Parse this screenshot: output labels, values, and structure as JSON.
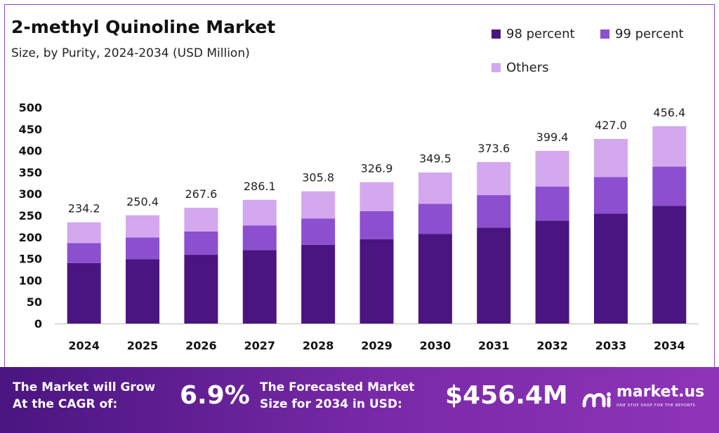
{
  "header": {
    "title": "2-methyl Quinoline Market",
    "subtitle": "Size, by Purity, 2024-2034 (USD Million)"
  },
  "legend": {
    "items": [
      {
        "label": "98 percent",
        "color": "#4a1580"
      },
      {
        "label": "99 percent",
        "color": "#8b4fcf"
      },
      {
        "label": "Others",
        "color": "#d3a8ee"
      }
    ]
  },
  "chart_data": {
    "type": "bar",
    "stacked": true,
    "categories": [
      "2024",
      "2025",
      "2026",
      "2027",
      "2028",
      "2029",
      "2030",
      "2031",
      "2032",
      "2033",
      "2034"
    ],
    "series": [
      {
        "name": "98 percent",
        "color": "#4a1580",
        "values": [
          140,
          149,
          159,
          170,
          182,
          195,
          207,
          222,
          238,
          254,
          272
        ]
      },
      {
        "name": "99 percent",
        "color": "#8b4fcf",
        "values": [
          46,
          50,
          54,
          57,
          61,
          65,
          70,
          75,
          79,
          85,
          91
        ]
      },
      {
        "name": "Others",
        "color": "#d3a8ee",
        "values": [
          48.2,
          51.4,
          54.6,
          59.1,
          62.8,
          66.9,
          72.5,
          76.6,
          82.4,
          88.0,
          93.4
        ]
      }
    ],
    "totals": [
      "234.2",
      "250.4",
      "267.6",
      "286.1",
      "305.8",
      "326.9",
      "349.5",
      "373.6",
      "399.4",
      "427.0",
      "456.4"
    ],
    "y_ticks": [
      "0",
      "50",
      "100",
      "150",
      "200",
      "250",
      "300",
      "350",
      "400",
      "450",
      "500"
    ],
    "ylim": [
      0,
      500
    ],
    "grid": false,
    "legend_position": "top-right"
  },
  "banner": {
    "cagr_line1": "The Market will Grow",
    "cagr_line2": "At the CAGR of:",
    "cagr_value": "6.9%",
    "forecast_line1": "The Forecasted Market",
    "forecast_line2": "Size for 2034 in USD:",
    "forecast_value": "$456.4M",
    "logo_name": "market.us",
    "logo_tagline": "ONE STOP SHOP FOR THE REPORTS"
  }
}
